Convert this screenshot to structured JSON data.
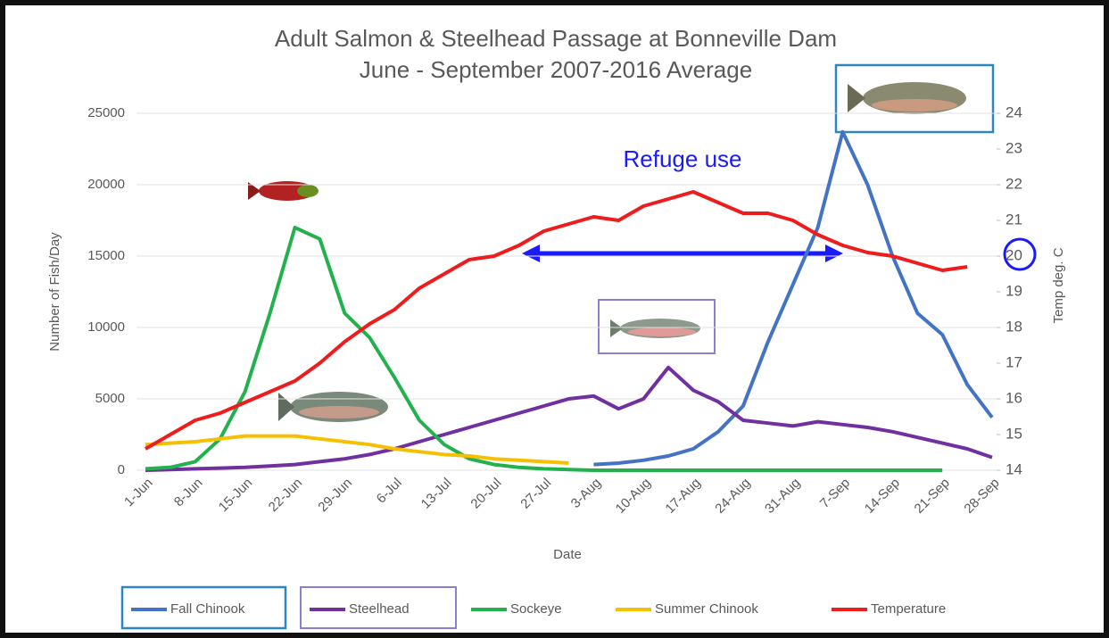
{
  "chart_data": {
    "type": "line",
    "title": "Adult Salmon & Steelhead Passage at Bonneville Dam",
    "subtitle": "June - September 2007-2016 Average",
    "x_label": "Date",
    "y_label": "Number of Fish/Day",
    "y2_label": "Temp deg. C",
    "annotation": "Refuge use",
    "categories": [
      "1-Jun",
      null,
      "8-Jun",
      null,
      "15-Jun",
      null,
      "22-Jun",
      null,
      "29-Jun",
      null,
      "6-Jul",
      null,
      "13-Jul",
      null,
      "20-Jul",
      null,
      "27-Jul",
      null,
      "3-Aug",
      null,
      "10-Aug",
      null,
      "17-Aug",
      null,
      "24-Aug",
      null,
      "31-Aug",
      null,
      "7-Sep",
      null,
      "14-Sep",
      null,
      "21-Sep",
      null,
      "28-Sep"
    ],
    "ylim": [
      0,
      25000
    ],
    "yticks": [
      0,
      5000,
      10000,
      15000,
      20000,
      25000
    ],
    "y2lim": [
      14,
      24
    ],
    "y2ticks": [
      14,
      15,
      16,
      17,
      18,
      19,
      20,
      21,
      22,
      23,
      24
    ],
    "series": [
      {
        "name": "Fall Chinook",
        "color": "#4472c4",
        "values": [
          null,
          null,
          null,
          null,
          null,
          null,
          null,
          null,
          null,
          null,
          null,
          null,
          null,
          null,
          null,
          null,
          null,
          null,
          400,
          500,
          700,
          1000,
          1500,
          2700,
          4500,
          9000,
          13000,
          17000,
          23700,
          20000,
          15000,
          11000,
          9500,
          6000,
          3700
        ]
      },
      {
        "name": "Steelhead",
        "color": "#7030a0",
        "values": [
          0,
          50,
          100,
          150,
          200,
          300,
          400,
          600,
          800,
          1100,
          1500,
          2000,
          2500,
          3000,
          3500,
          4000,
          4500,
          5000,
          5200,
          4300,
          5000,
          7200,
          5600,
          4800,
          3500,
          3300,
          3100,
          3400,
          3200,
          3000,
          2700,
          2300,
          1900,
          1500,
          900
        ]
      },
      {
        "name": "Sockeye",
        "color": "#22b14c",
        "values": [
          100,
          200,
          600,
          2200,
          5500,
          11000,
          17000,
          16200,
          11000,
          9300,
          6500,
          3500,
          1800,
          800,
          400,
          200,
          100,
          50,
          0,
          0,
          0,
          0,
          0,
          0,
          0,
          0,
          0,
          0,
          0,
          0,
          0,
          0,
          0,
          null,
          null
        ]
      },
      {
        "name": "Summer Chinook",
        "color": "#f5c000",
        "values": [
          1800,
          1900,
          2000,
          2200,
          2400,
          2400,
          2400,
          2200,
          2000,
          1800,
          1500,
          1300,
          1100,
          1000,
          800,
          700,
          600,
          500,
          null,
          null,
          null,
          null,
          null,
          null,
          null,
          null,
          null,
          null,
          null,
          null,
          null,
          null,
          null,
          null,
          null
        ]
      },
      {
        "name": "Temperature",
        "color": "#ee1c1c",
        "axis": "y2",
        "values": [
          14.6,
          15.0,
          15.4,
          15.6,
          15.9,
          16.2,
          16.5,
          17.0,
          17.6,
          18.1,
          18.5,
          19.1,
          19.5,
          19.9,
          20.0,
          20.3,
          20.7,
          20.9,
          21.1,
          21.0,
          21.4,
          21.6,
          21.8,
          21.5,
          21.2,
          21.2,
          21.0,
          20.6,
          20.3,
          20.1,
          20.0,
          19.8,
          19.6,
          19.7,
          null
        ]
      }
    ]
  }
}
